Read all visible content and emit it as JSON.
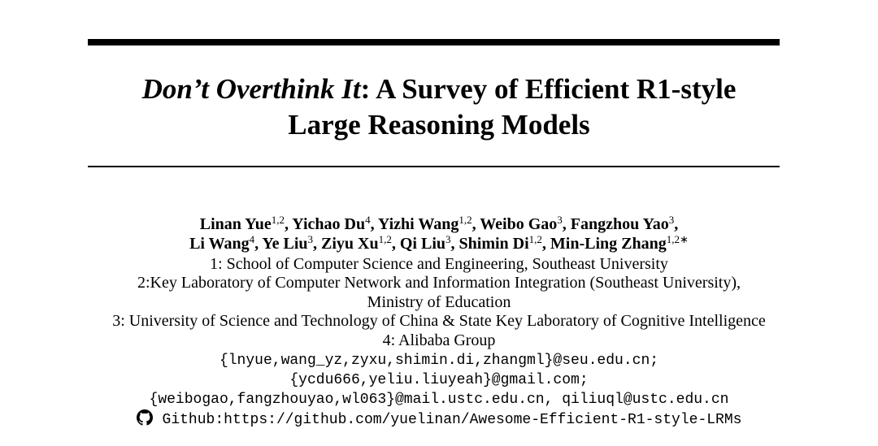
{
  "title": {
    "italic_part": "Don’t Overthink It",
    "line1_rest": ": A Survey of Efficient R1-style",
    "line2": "Large Reasoning Models"
  },
  "authors": {
    "line1": [
      {
        "name": "Linan Yue",
        "sup": "1,2",
        "sep": ", "
      },
      {
        "name": "Yichao Du",
        "sup": "4",
        "sep": ", "
      },
      {
        "name": "Yizhi Wang",
        "sup": "1,2",
        "sep": ", "
      },
      {
        "name": "Weibo Gao",
        "sup": "3",
        "sep": ", "
      },
      {
        "name": "Fangzhou Yao",
        "sup": "3",
        "sep": ","
      }
    ],
    "line2": [
      {
        "name": "Li Wang",
        "sup": "4",
        "sep": ", "
      },
      {
        "name": "Ye Liu",
        "sup": "3",
        "sep": ", "
      },
      {
        "name": "Ziyu Xu",
        "sup": "1,2",
        "sep": ", "
      },
      {
        "name": "Qi Liu",
        "sup": "3",
        "sep": ", "
      },
      {
        "name": "Shimin Di",
        "sup": "1,2",
        "sep": ", "
      },
      {
        "name": "Min-Ling Zhang",
        "sup": "1,2∗",
        "sep": ""
      }
    ]
  },
  "affiliations": [
    "1: School of Computer Science and Engineering, Southeast University",
    "2:Key Laboratory of Computer Network and Information Integration (Southeast University),",
    "Ministry of Education",
    "3: University of Science and Technology of China & State Key Laboratory of Cognitive Intelligence",
    "4: Alibaba Group"
  ],
  "emails": [
    "{lnyue,wang_yz,zyxu,shimin.di,zhangml}@seu.edu.cn;",
    "{ycdu666,yeliu.liuyeah}@gmail.com;",
    "{weibogao,fangzhouyao,wl063}@mail.ustc.edu.cn, qiliuql@ustc.edu.cn"
  ],
  "github": {
    "icon": "github-icon",
    "text": "Github:https://github.com/yuelinan/Awesome-Efficient-R1-style-LRMs"
  }
}
